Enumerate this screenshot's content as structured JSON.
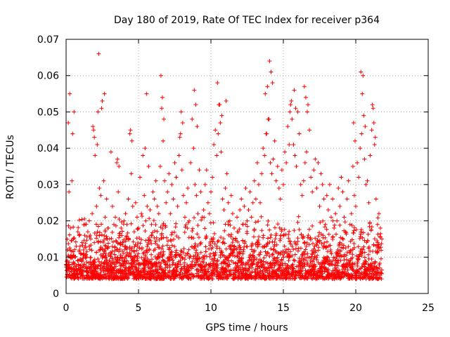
{
  "chart_data": {
    "type": "scatter",
    "title": "Day 180 of 2019, Rate Of TEC Index for receiver p364",
    "xlabel": "GPS time / hours",
    "ylabel": "ROTI / TECUs",
    "xlim": [
      0,
      25
    ],
    "ylim": [
      0,
      0.07
    ],
    "x_ticks": [
      0,
      5,
      10,
      15,
      20,
      25
    ],
    "y_ticks": [
      0,
      0.01,
      0.02,
      0.03,
      0.04,
      0.05,
      0.06,
      0.07
    ],
    "x_tick_labels": [
      "0",
      "5",
      "10",
      "15",
      "20",
      "25"
    ],
    "y_tick_labels": [
      "0",
      "0.01",
      "0.02",
      "0.03",
      "0.04",
      "0.05",
      "0.06",
      "0.07"
    ],
    "grid": true,
    "marker": "+",
    "color": "#ff0000",
    "series": [
      {
        "name": "ROTI",
        "x": [
          0.1,
          0.2,
          0.3,
          0.4,
          0.5,
          0.6,
          0.7,
          0.8,
          0.9,
          1.0,
          1.1,
          1.2,
          1.3,
          1.4,
          1.5,
          1.6,
          1.7,
          1.8,
          1.9,
          2.0,
          2.1,
          2.2,
          2.3,
          2.4,
          2.5,
          2.6,
          2.7,
          2.8,
          2.9,
          3.0,
          3.1,
          3.2,
          3.3,
          3.4,
          3.5,
          3.6,
          3.7,
          3.8,
          3.9,
          4.0,
          4.1,
          4.2,
          4.3,
          4.4,
          4.5,
          4.6,
          4.7,
          4.8,
          4.9,
          5.0,
          5.1,
          5.2,
          5.3,
          5.4,
          5.5,
          5.6,
          5.7,
          5.8,
          5.9,
          6.0,
          6.1,
          6.2,
          6.3,
          6.4,
          6.5,
          6.6,
          6.7,
          6.8,
          6.9,
          7.0,
          7.1,
          7.2,
          7.3,
          7.4,
          7.5,
          7.6,
          7.7,
          7.8,
          7.9,
          8.0,
          8.1,
          8.2,
          8.3,
          8.4,
          8.5,
          8.6,
          8.7,
          8.8,
          8.9,
          9.0,
          9.1,
          9.2,
          9.3,
          9.4,
          9.5,
          9.6,
          9.7,
          9.8,
          9.9,
          10.0,
          10.1,
          10.2,
          10.3,
          10.4,
          10.5,
          10.6,
          10.7,
          10.8,
          10.9,
          11.0,
          11.1,
          11.2,
          11.3,
          11.4,
          11.5,
          11.6,
          11.7,
          11.8,
          11.9,
          12.0,
          12.1,
          12.2,
          12.3,
          12.4,
          12.5,
          12.6,
          12.7,
          12.8,
          12.9,
          13.0,
          13.1,
          13.2,
          13.3,
          13.4,
          13.5,
          13.6,
          13.7,
          13.8,
          13.9,
          14.0,
          14.1,
          14.2,
          14.3,
          14.4,
          14.5,
          14.6,
          14.7,
          14.8,
          14.9,
          15.0,
          15.1,
          15.2,
          15.3,
          15.4,
          15.5,
          15.6,
          15.7,
          15.8,
          15.9,
          16.0,
          16.1,
          16.2,
          16.3,
          16.4,
          16.5,
          16.6,
          16.7,
          16.8,
          16.9,
          17.0,
          17.1,
          17.2,
          17.3,
          17.4,
          17.5,
          17.6,
          17.7,
          17.8,
          17.9,
          18.0,
          18.1,
          18.2,
          18.3,
          18.4,
          18.5,
          18.6,
          18.7,
          18.8,
          18.9,
          19.0,
          19.1,
          19.2,
          19.3,
          19.4,
          19.5,
          19.6,
          19.7,
          19.8,
          19.9,
          20.0,
          20.1,
          20.2,
          20.3,
          20.4,
          20.5,
          20.6,
          20.7,
          20.8,
          20.9,
          21.0,
          21.1,
          21.2,
          21.3,
          21.4,
          21.5,
          21.6,
          21.7,
          21.8,
          0.15,
          0.25,
          0.45,
          0.55,
          1.85,
          1.95,
          2.15,
          2.25,
          2.45,
          2.65,
          3.55,
          3.65,
          4.45,
          4.55,
          5.45,
          5.55,
          6.55,
          6.65,
          6.75,
          7.85,
          7.95,
          8.05,
          8.85,
          8.95,
          9.05,
          10.45,
          10.55,
          10.65,
          10.75,
          11.05,
          13.75,
          13.85,
          13.95,
          14.05,
          14.15,
          14.25,
          15.45,
          15.55,
          15.75,
          15.85,
          16.45,
          16.55,
          16.65,
          19.85,
          19.95,
          20.35,
          20.45,
          20.55,
          20.65,
          21.15,
          21.25,
          21.35,
          0.35,
          0.65,
          1.05,
          1.25,
          1.45,
          1.65,
          2.05,
          2.35,
          2.85,
          3.15,
          3.35,
          3.85,
          4.15,
          4.35,
          4.85,
          5.15,
          5.35,
          5.85,
          6.15,
          6.35,
          6.85,
          7.15,
          7.35,
          7.65,
          8.15,
          8.35,
          8.65,
          9.15,
          9.35,
          9.65,
          9.85,
          10.15,
          10.35,
          10.85,
          11.15,
          11.35,
          11.65,
          11.85,
          12.15,
          12.35,
          12.65,
          12.85,
          13.15,
          13.35,
          13.65,
          14.35,
          14.65,
          14.85,
          15.15,
          15.35,
          15.65,
          16.15,
          16.35,
          16.85,
          17.15,
          17.35,
          17.65,
          17.85,
          18.15,
          18.35,
          18.65,
          18.85,
          19.15,
          19.35,
          19.65,
          20.15,
          20.85,
          21.45,
          21.65
        ],
        "y": [
          0.012,
          0.028,
          0.018,
          0.031,
          0.015,
          0.01,
          0.013,
          0.009,
          0.016,
          0.011,
          0.014,
          0.012,
          0.019,
          0.01,
          0.017,
          0.013,
          0.015,
          0.022,
          0.045,
          0.038,
          0.024,
          0.05,
          0.029,
          0.027,
          0.053,
          0.031,
          0.021,
          0.026,
          0.018,
          0.015,
          0.039,
          0.024,
          0.019,
          0.021,
          0.036,
          0.028,
          0.016,
          0.018,
          0.014,
          0.02,
          0.022,
          0.019,
          0.026,
          0.044,
          0.033,
          0.024,
          0.017,
          0.025,
          0.021,
          0.018,
          0.032,
          0.022,
          0.038,
          0.027,
          0.02,
          0.024,
          0.035,
          0.023,
          0.019,
          0.028,
          0.026,
          0.031,
          0.024,
          0.022,
          0.035,
          0.051,
          0.042,
          0.031,
          0.025,
          0.028,
          0.033,
          0.022,
          0.03,
          0.026,
          0.036,
          0.032,
          0.024,
          0.038,
          0.044,
          0.034,
          0.027,
          0.021,
          0.025,
          0.029,
          0.02,
          0.036,
          0.048,
          0.04,
          0.03,
          0.027,
          0.022,
          0.034,
          0.028,
          0.021,
          0.023,
          0.03,
          0.034,
          0.025,
          0.022,
          0.028,
          0.032,
          0.041,
          0.045,
          0.038,
          0.044,
          0.052,
          0.039,
          0.026,
          0.023,
          0.029,
          0.033,
          0.025,
          0.02,
          0.027,
          0.022,
          0.018,
          0.015,
          0.021,
          0.017,
          0.023,
          0.026,
          0.019,
          0.024,
          0.029,
          0.02,
          0.023,
          0.028,
          0.021,
          0.025,
          0.031,
          0.026,
          0.036,
          0.03,
          0.025,
          0.033,
          0.04,
          0.038,
          0.044,
          0.057,
          0.048,
          0.036,
          0.033,
          0.037,
          0.042,
          0.031,
          0.035,
          0.029,
          0.026,
          0.034,
          0.03,
          0.039,
          0.036,
          0.046,
          0.041,
          0.052,
          0.048,
          0.041,
          0.038,
          0.035,
          0.05,
          0.044,
          0.03,
          0.027,
          0.031,
          0.036,
          0.039,
          0.052,
          0.045,
          0.032,
          0.028,
          0.034,
          0.037,
          0.029,
          0.036,
          0.024,
          0.033,
          0.03,
          0.026,
          0.019,
          0.027,
          0.023,
          0.03,
          0.021,
          0.026,
          0.018,
          0.022,
          0.02,
          0.029,
          0.024,
          0.032,
          0.028,
          0.021,
          0.017,
          0.026,
          0.031,
          0.019,
          0.022,
          0.035,
          0.027,
          0.024,
          0.036,
          0.032,
          0.04,
          0.044,
          0.06,
          0.037,
          0.03,
          0.031,
          0.025,
          0.038,
          0.045,
          0.051,
          0.041,
          0.026,
          0.019,
          0.022,
          0.018,
          0.015,
          0.047,
          0.055,
          0.044,
          0.05,
          0.046,
          0.043,
          0.041,
          0.066,
          0.051,
          0.055,
          0.037,
          0.035,
          0.045,
          0.042,
          0.04,
          0.055,
          0.06,
          0.054,
          0.048,
          0.043,
          0.05,
          0.047,
          0.056,
          0.052,
          0.046,
          0.058,
          0.052,
          0.047,
          0.049,
          0.053,
          0.055,
          0.044,
          0.048,
          0.064,
          0.061,
          0.058,
          0.05,
          0.053,
          0.056,
          0.051,
          0.057,
          0.054,
          0.05,
          0.047,
          0.042,
          0.061,
          0.055,
          0.049,
          0.046,
          0.052,
          0.047,
          0.043,
          0.007,
          0.005,
          0.006,
          0.008,
          0.006,
          0.007,
          0.005,
          0.004,
          0.007,
          0.006,
          0.008,
          0.005,
          0.007,
          0.006,
          0.008,
          0.005,
          0.007,
          0.006,
          0.008,
          0.005,
          0.007,
          0.006,
          0.008,
          0.005,
          0.007,
          0.006,
          0.008,
          0.005,
          0.007,
          0.006,
          0.008,
          0.005,
          0.007,
          0.006,
          0.008,
          0.005,
          0.007,
          0.006,
          0.008,
          0.005,
          0.007,
          0.006,
          0.008,
          0.005,
          0.007,
          0.006,
          0.008,
          0.005,
          0.007,
          0.006,
          0.008,
          0.005,
          0.007,
          0.006,
          0.008,
          0.005,
          0.007,
          0.006,
          0.008,
          0.005,
          0.007,
          0.006,
          0.008,
          0.005,
          0.007,
          0.006,
          0.008,
          0.005,
          0.007
        ]
      }
    ]
  }
}
